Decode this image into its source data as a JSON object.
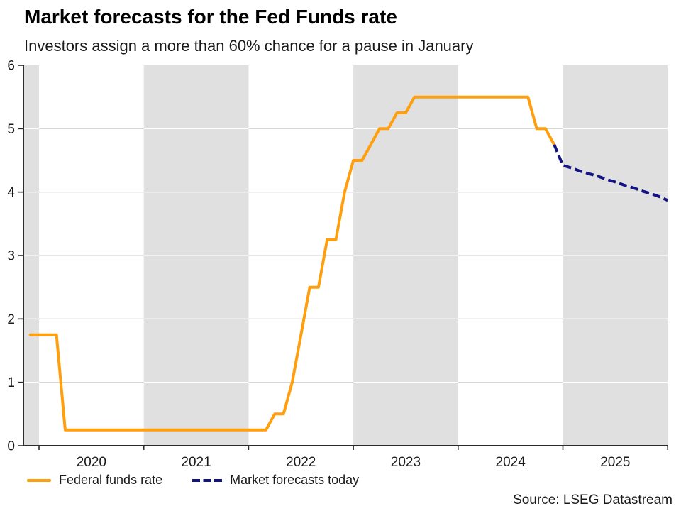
{
  "header": {
    "title": "Market forecasts for the Fed Funds rate",
    "subtitle": "Investors assign a more than 60% chance for a pause in January"
  },
  "source": "Source: LSEG Datastream",
  "legend": [
    {
      "label": "Federal funds rate",
      "color": "#FF9F0E",
      "style": "solid"
    },
    {
      "label": "Market forecasts today",
      "color": "#131383",
      "style": "dashed"
    }
  ],
  "colors": {
    "federal_funds_line": "#FF9F0E",
    "forecast_line": "#131383",
    "year_band": "#E0E0E0",
    "gridline_on_white": "#D6D6D6",
    "gridline_on_band": "#FFFFFF",
    "axis": "#2b2b2b"
  },
  "chart_data": {
    "type": "line",
    "title": "Market forecasts for the Fed Funds rate",
    "subtitle": "Investors assign a more than 60% chance for a pause in January",
    "xlabel": "",
    "ylabel": "",
    "ylim": [
      0,
      6
    ],
    "yticks": [
      0,
      1,
      2,
      3,
      4,
      5,
      6
    ],
    "xlim_decimal_year": [
      2019.851,
      2026.0
    ],
    "xtick_years": [
      2020,
      2021,
      2022,
      2023,
      2024,
      2025
    ],
    "shaded_years": [
      2019,
      2021,
      2023,
      2025
    ],
    "grid": "horizontal",
    "legend_position": "bottom-left",
    "series": [
      {
        "name": "Federal funds rate",
        "style": "solid",
        "color": "#FF9F0E",
        "start_month": "2019-11",
        "frequency": "monthly-end",
        "values": [
          1.75,
          1.75,
          1.75,
          1.75,
          0.25,
          0.25,
          0.25,
          0.25,
          0.25,
          0.25,
          0.25,
          0.25,
          0.25,
          0.25,
          0.25,
          0.25,
          0.25,
          0.25,
          0.25,
          0.25,
          0.25,
          0.25,
          0.25,
          0.25,
          0.25,
          0.25,
          0.25,
          0.25,
          0.5,
          0.5,
          1.0,
          1.75,
          2.5,
          2.5,
          3.25,
          3.25,
          4.0,
          4.5,
          4.5,
          4.75,
          5.0,
          5.0,
          5.25,
          5.25,
          5.5,
          5.5,
          5.5,
          5.5,
          5.5,
          5.5,
          5.5,
          5.5,
          5.5,
          5.5,
          5.5,
          5.5,
          5.5,
          5.5,
          5.0,
          5.0,
          4.75
        ]
      },
      {
        "name": "Market forecasts today",
        "style": "dashed",
        "color": "#131383",
        "start_month": "2024-11",
        "frequency": "monthly-end",
        "values": [
          4.75,
          4.42,
          4.38,
          4.33,
          4.29,
          4.25,
          4.2,
          4.16,
          4.11,
          4.07,
          4.02,
          3.98,
          3.93,
          3.87
        ]
      }
    ]
  }
}
